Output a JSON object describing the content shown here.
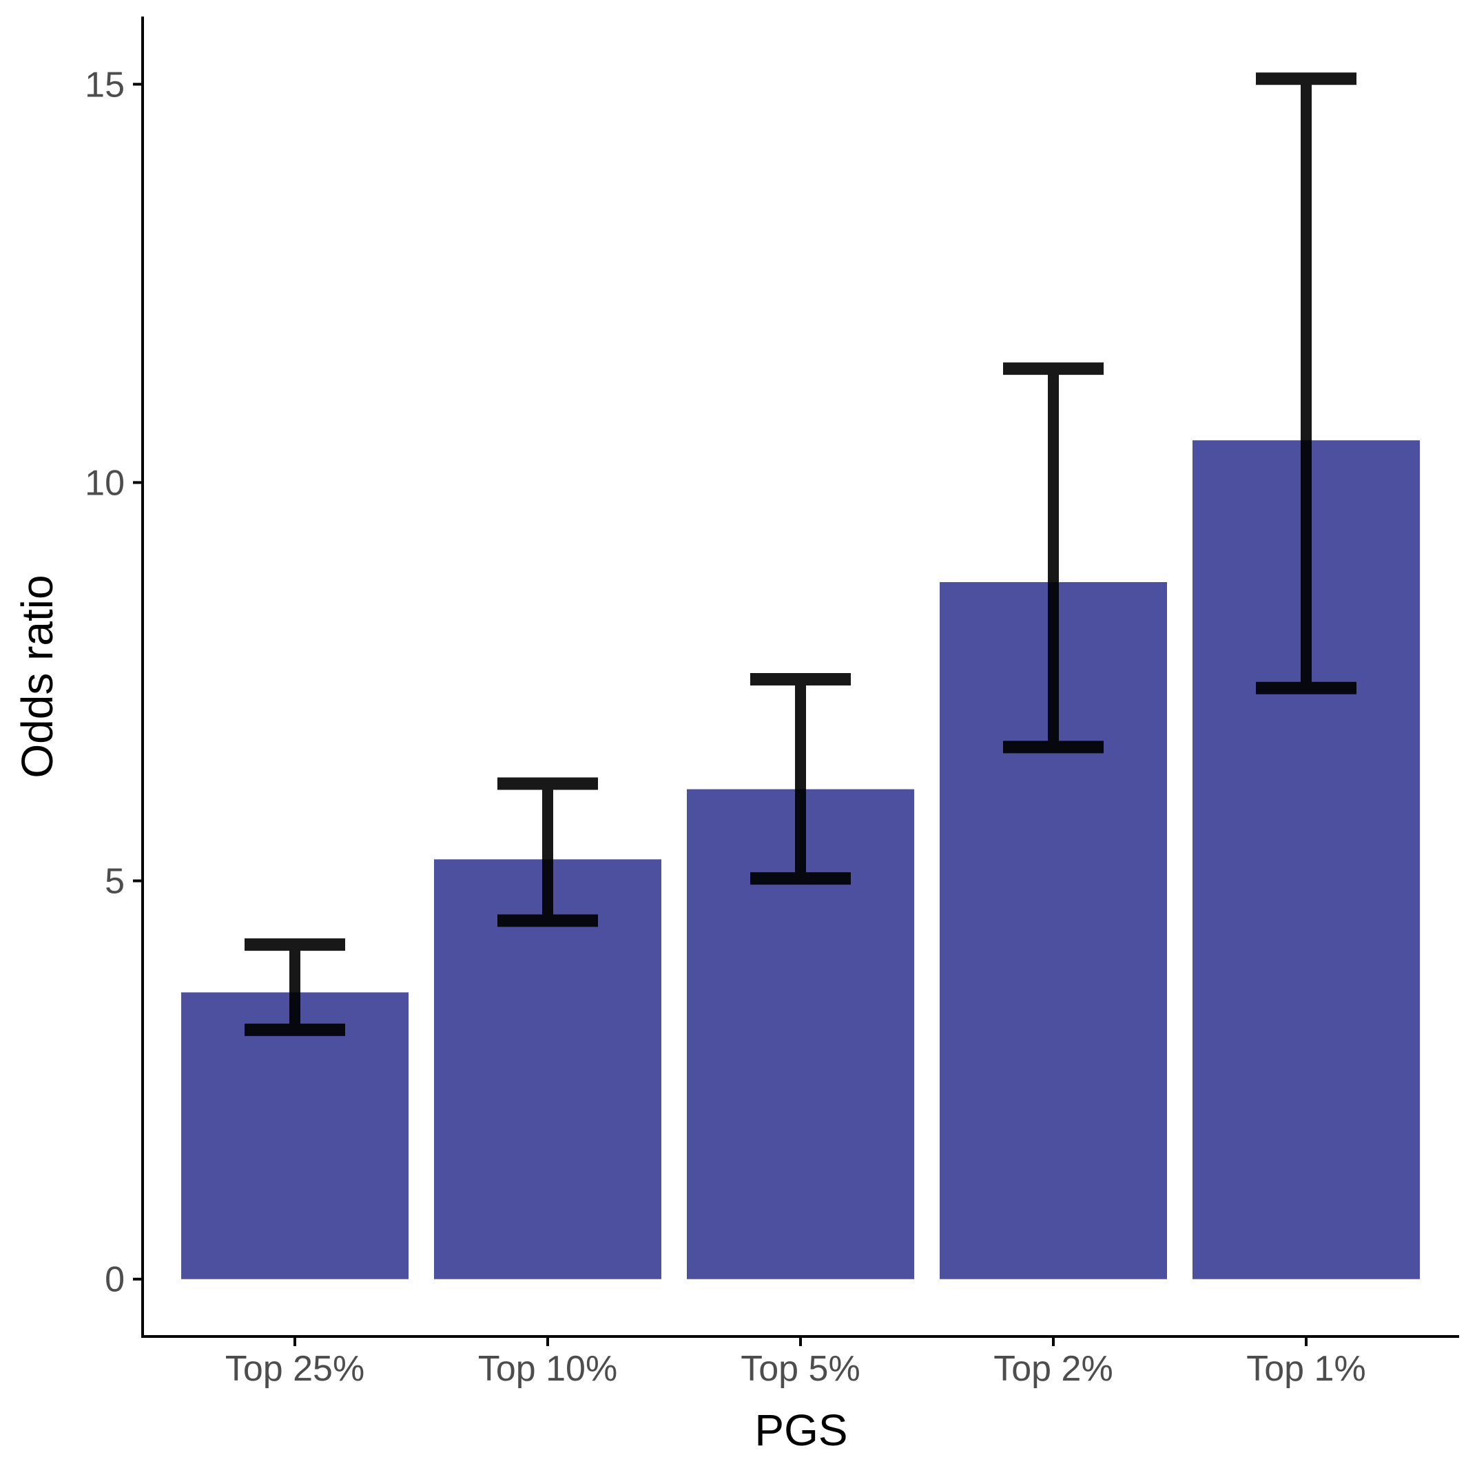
{
  "chart_data": {
    "type": "bar",
    "title": "",
    "xlabel": "PGS",
    "ylabel": "Odds ratio",
    "categories": [
      "Top 25%",
      "Top 10%",
      "Top 5%",
      "Top 2%",
      "Top 1%"
    ],
    "values": [
      3.6,
      5.27,
      6.15,
      8.75,
      10.53
    ],
    "error_lower": [
      3.13,
      4.5,
      5.03,
      6.68,
      7.42
    ],
    "error_upper": [
      4.2,
      6.22,
      7.53,
      11.43,
      15.07
    ],
    "ylim": [
      -0.72,
      15.85
    ],
    "yticks": [
      0,
      5,
      10,
      15
    ],
    "grid": false,
    "legend": "none",
    "colors": {
      "bar": "#4d4f9f",
      "errorbar": "#000000",
      "axis": "#000000",
      "tick_text": "#4d4d4d"
    }
  }
}
